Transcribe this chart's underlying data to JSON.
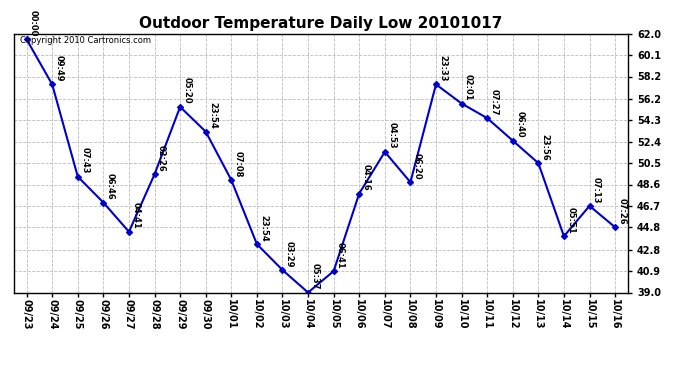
{
  "title": "Outdoor Temperature Daily Low 20101017",
  "copyright": "Copyright 2010 Cartronics.com",
  "x_labels": [
    "09/23",
    "09/24",
    "09/25",
    "09/26",
    "09/27",
    "09/28",
    "09/29",
    "09/30",
    "10/01",
    "10/02",
    "10/03",
    "10/04",
    "10/05",
    "10/06",
    "10/07",
    "10/08",
    "10/09",
    "10/10",
    "10/11",
    "10/12",
    "10/13",
    "10/14",
    "10/15",
    "10/16"
  ],
  "y_values": [
    61.5,
    57.5,
    49.3,
    47.0,
    44.4,
    49.5,
    55.5,
    53.3,
    49.0,
    43.3,
    41.0,
    39.0,
    40.9,
    47.8,
    51.5,
    48.8,
    57.5,
    55.8,
    54.5,
    52.5,
    50.5,
    44.0,
    46.7,
    44.8
  ],
  "time_labels": [
    "00:00",
    "09:49",
    "07:43",
    "06:46",
    "04:41",
    "02:26",
    "05:20",
    "23:54",
    "07:08",
    "23:54",
    "03:29",
    "05:37",
    "06:41",
    "04:16",
    "04:53",
    "06:20",
    "23:33",
    "02:01",
    "07:27",
    "06:40",
    "23:56",
    "05:51",
    "07:13",
    "07:26"
  ],
  "y_ticks": [
    39.0,
    40.9,
    42.8,
    44.8,
    46.7,
    48.6,
    50.5,
    52.4,
    54.3,
    56.2,
    58.2,
    60.1,
    62.0
  ],
  "line_color": "#0000cc",
  "marker_color": "#0000cc",
  "bg_color": "#ffffff",
  "grid_color": "#bbbbbb",
  "title_fontsize": 11,
  "label_fontsize": 6.0,
  "tick_fontsize": 7,
  "copyright_fontsize": 6
}
